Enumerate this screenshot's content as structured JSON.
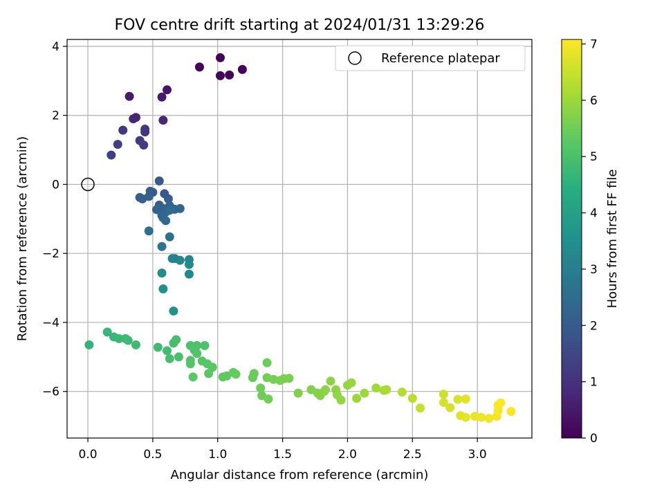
{
  "chart_data": {
    "type": "scatter",
    "title": "FOV centre drift starting at 2024/01/31 13:29:26",
    "xlabel": "Angular distance from reference (arcmin)",
    "ylabel": "Rotation from reference (arcmin)",
    "xlim": [
      -0.16,
      3.42
    ],
    "ylim": [
      -7.35,
      4.2
    ],
    "xticks": [
      0.0,
      0.5,
      1.0,
      1.5,
      2.0,
      2.5,
      3.0
    ],
    "xtick_labels": [
      "0.0",
      "0.5",
      "1.0",
      "1.5",
      "2.0",
      "2.5",
      "3.0"
    ],
    "yticks": [
      -6,
      -4,
      -2,
      0,
      2,
      4
    ],
    "ytick_labels": [
      "−6",
      "−4",
      "−2",
      "0",
      "2",
      "4"
    ],
    "grid": true,
    "legend": {
      "placement": "top-right",
      "entries": [
        "Reference platepar"
      ]
    },
    "colorbar": {
      "label": "Hours from first FF file",
      "range": [
        0,
        7.08
      ],
      "colormap": "viridis",
      "ticks": [
        0,
        1,
        2,
        3,
        4,
        5,
        6,
        7
      ],
      "tick_labels": [
        "0",
        "1",
        "2",
        "3",
        "4",
        "5",
        "6",
        "7"
      ]
    },
    "reference_point": {
      "x": 0.0,
      "y": 0.0
    },
    "series": [
      {
        "points": [
          [
            0.86,
            3.4,
            0.05
          ],
          [
            1.02,
            3.67,
            0.05
          ],
          [
            1.19,
            3.33,
            0.06
          ],
          [
            1.02,
            3.15,
            0.1
          ],
          [
            1.09,
            3.17,
            0.12
          ],
          [
            0.61,
            2.74,
            0.4
          ],
          [
            0.32,
            2.55,
            0.52
          ],
          [
            0.57,
            2.53,
            0.55
          ],
          [
            0.37,
            1.94,
            0.7
          ],
          [
            0.35,
            1.9,
            0.75
          ],
          [
            0.58,
            1.86,
            0.78
          ],
          [
            0.44,
            1.6,
            1.05
          ],
          [
            0.27,
            1.57,
            1.12
          ],
          [
            0.44,
            1.52,
            1.15
          ],
          [
            0.4,
            1.27,
            1.2
          ],
          [
            0.43,
            1.14,
            1.24
          ],
          [
            0.23,
            1.16,
            1.28
          ],
          [
            0.18,
            0.85,
            1.32
          ],
          [
            0.55,
            0.1,
            1.95
          ],
          [
            0.59,
            -0.27,
            2.0
          ],
          [
            0.48,
            -0.2,
            2.02
          ],
          [
            0.5,
            -0.23,
            2.05
          ],
          [
            0.62,
            -0.42,
            2.08
          ],
          [
            0.4,
            -0.38,
            2.1
          ],
          [
            0.42,
            -0.42,
            2.12
          ],
          [
            0.47,
            -0.35,
            2.15
          ],
          [
            0.55,
            -0.6,
            2.18
          ],
          [
            0.53,
            -0.73,
            2.2
          ],
          [
            0.58,
            -0.7,
            2.22
          ],
          [
            0.6,
            -0.8,
            2.25
          ],
          [
            0.63,
            -0.62,
            2.28
          ],
          [
            0.67,
            -0.72,
            2.3
          ],
          [
            0.57,
            -0.9,
            2.32
          ],
          [
            0.71,
            -0.7,
            2.35
          ],
          [
            0.58,
            -0.97,
            2.38
          ],
          [
            0.6,
            -1.05,
            2.4
          ],
          [
            0.63,
            -0.75,
            2.42
          ],
          [
            0.47,
            -1.35,
            2.55
          ],
          [
            0.63,
            -1.52,
            2.65
          ],
          [
            0.57,
            -1.8,
            2.75
          ],
          [
            0.65,
            -2.15,
            3.1
          ],
          [
            0.67,
            -2.15,
            3.15
          ],
          [
            0.71,
            -2.2,
            3.2
          ],
          [
            0.78,
            -2.18,
            3.25
          ],
          [
            0.78,
            -2.32,
            3.3
          ],
          [
            0.78,
            -2.6,
            3.35
          ],
          [
            0.57,
            -2.57,
            3.4
          ],
          [
            0.58,
            -3.03,
            3.5
          ],
          [
            0.66,
            -3.67,
            3.6
          ],
          [
            0.01,
            -4.65,
            4.6
          ],
          [
            0.15,
            -4.28,
            4.7
          ],
          [
            0.2,
            -4.42,
            4.72
          ],
          [
            0.24,
            -4.47,
            4.75
          ],
          [
            0.29,
            -4.47,
            4.78
          ],
          [
            0.31,
            -4.52,
            4.8
          ],
          [
            0.37,
            -4.65,
            4.82
          ],
          [
            0.54,
            -4.72,
            4.85
          ],
          [
            0.61,
            -4.82,
            4.88
          ],
          [
            0.66,
            -4.6,
            4.9
          ],
          [
            0.68,
            -4.5,
            4.92
          ],
          [
            0.63,
            -5.05,
            4.95
          ],
          [
            0.7,
            -5.0,
            4.98
          ],
          [
            0.79,
            -4.67,
            5.0
          ],
          [
            0.84,
            -4.67,
            5.02
          ],
          [
            0.9,
            -4.67,
            5.05
          ],
          [
            0.82,
            -4.8,
            5.08
          ],
          [
            0.84,
            -4.9,
            5.1
          ],
          [
            0.79,
            -5.1,
            5.12
          ],
          [
            0.79,
            -5.2,
            5.15
          ],
          [
            0.88,
            -5.12,
            5.18
          ],
          [
            0.92,
            -5.2,
            5.2
          ],
          [
            0.96,
            -5.3,
            5.22
          ],
          [
            0.93,
            -5.48,
            5.25
          ],
          [
            0.81,
            -5.58,
            5.28
          ],
          [
            1.04,
            -5.58,
            5.3
          ],
          [
            1.07,
            -5.55,
            5.32
          ],
          [
            1.12,
            -5.45,
            5.35
          ],
          [
            1.14,
            -5.5,
            5.38
          ],
          [
            1.27,
            -5.6,
            5.4
          ],
          [
            1.28,
            -5.48,
            5.42
          ],
          [
            1.38,
            -5.17,
            5.45
          ],
          [
            1.33,
            -5.9,
            5.48
          ],
          [
            1.34,
            -6.12,
            5.5
          ],
          [
            1.39,
            -6.22,
            5.52
          ],
          [
            1.38,
            -5.6,
            5.55
          ],
          [
            1.43,
            -5.65,
            5.58
          ],
          [
            1.48,
            -5.68,
            5.6
          ],
          [
            1.51,
            -5.63,
            5.62
          ],
          [
            1.55,
            -5.62,
            5.65
          ],
          [
            1.62,
            -6.05,
            5.68
          ],
          [
            1.72,
            -5.95,
            5.7
          ],
          [
            1.77,
            -6.05,
            5.72
          ],
          [
            1.79,
            -6.12,
            5.75
          ],
          [
            1.82,
            -6.0,
            5.78
          ],
          [
            1.83,
            -5.95,
            5.8
          ],
          [
            1.87,
            -5.7,
            5.82
          ],
          [
            1.91,
            -5.95,
            5.85
          ],
          [
            1.92,
            -6.1,
            5.88
          ],
          [
            1.95,
            -6.25,
            5.9
          ],
          [
            2.0,
            -5.82,
            5.92
          ],
          [
            2.03,
            -5.75,
            5.95
          ],
          [
            2.07,
            -6.2,
            5.98
          ],
          [
            2.13,
            -6.05,
            6.0
          ],
          [
            2.22,
            -5.9,
            6.05
          ],
          [
            2.28,
            -5.97,
            6.1
          ],
          [
            2.3,
            -5.95,
            6.15
          ],
          [
            2.42,
            -6.02,
            6.25
          ],
          [
            2.5,
            -6.2,
            6.35
          ],
          [
            2.56,
            -6.48,
            6.45
          ],
          [
            2.74,
            -6.08,
            6.55
          ],
          [
            2.74,
            -6.32,
            6.6
          ],
          [
            2.79,
            -6.47,
            6.65
          ],
          [
            2.85,
            -6.23,
            6.7
          ],
          [
            2.87,
            -6.7,
            6.75
          ],
          [
            2.91,
            -6.22,
            6.78
          ],
          [
            2.91,
            -6.75,
            6.8
          ],
          [
            2.98,
            -6.72,
            6.85
          ],
          [
            3.03,
            -6.75,
            6.9
          ],
          [
            3.09,
            -6.78,
            6.95
          ],
          [
            3.15,
            -6.72,
            6.98
          ],
          [
            3.16,
            -6.55,
            7.0
          ],
          [
            3.16,
            -6.4,
            7.02
          ],
          [
            3.18,
            -6.33,
            7.05
          ],
          [
            3.26,
            -6.58,
            7.08
          ]
        ]
      }
    ]
  }
}
